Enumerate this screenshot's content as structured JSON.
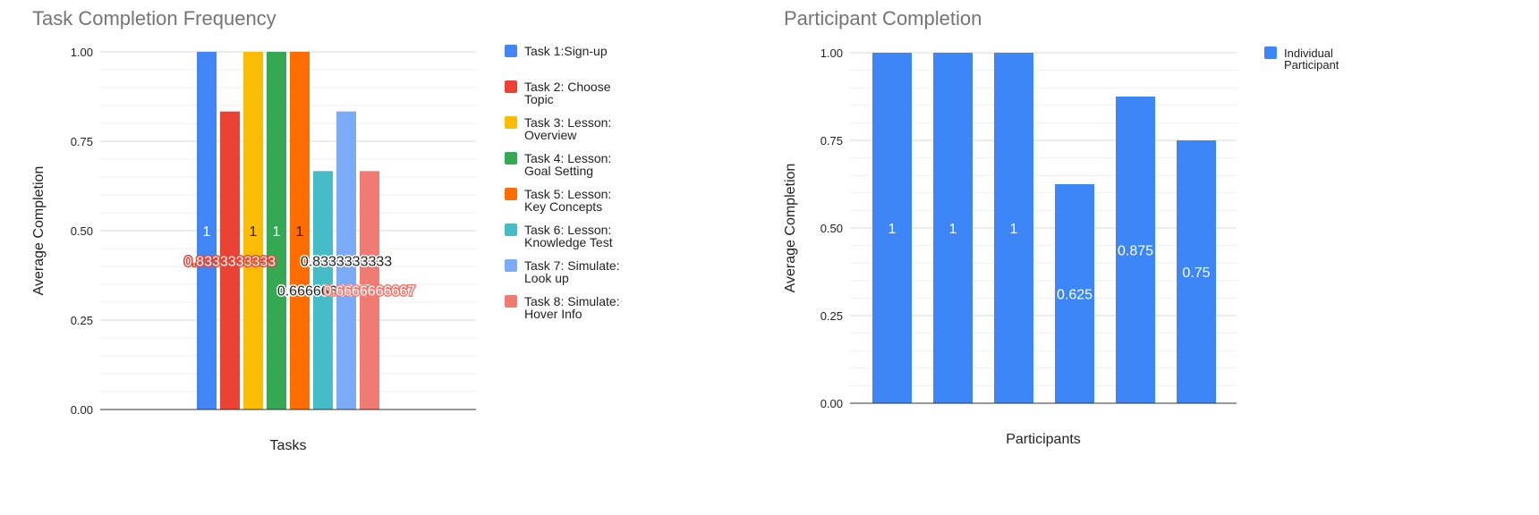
{
  "chart_data": [
    {
      "type": "bar",
      "title": "Task Completion Frequency",
      "xlabel": "Tasks",
      "ylabel": "Average Completion",
      "ylim": [
        0,
        1
      ],
      "yticks": [
        "0.00",
        "0.25",
        "0.50",
        "0.75",
        "1.00"
      ],
      "grid": true,
      "legend_position": "right",
      "series": [
        {
          "name": "Task 1:Sign-up",
          "values": [
            1
          ],
          "color": "#4285f4",
          "data_label": "1",
          "label_color": "#ffffff"
        },
        {
          "name": "Task 2: Choose Topic",
          "values": [
            0.8333333333
          ],
          "color": "#ea4335",
          "data_label": "0.8333333333",
          "label_color": "#ffffff"
        },
        {
          "name": "Task 3: Lesson: Overview",
          "values": [
            1
          ],
          "color": "#fbbc04",
          "data_label": "1",
          "label_color": "#222222"
        },
        {
          "name": "Task 4: Lesson: Goal Setting",
          "values": [
            1
          ],
          "color": "#34a853",
          "data_label": "1",
          "label_color": "#ffffff"
        },
        {
          "name": "Task 5: Lesson: Key Concepts",
          "values": [
            1
          ],
          "color": "#ff6d01",
          "data_label": "1",
          "label_color": "#222222"
        },
        {
          "name": "Task 6: Lesson: Knowledge Test",
          "values": [
            0.6666666667
          ],
          "color": "#46bdc6",
          "data_label": "0.6666666667",
          "label_color": "#222222"
        },
        {
          "name": "Task 7: Simulate: Look up",
          "values": [
            0.8333333333
          ],
          "color": "#7baaf7",
          "data_label": "0.8333333333",
          "label_color": "#222222"
        },
        {
          "name": "Task 8: Simulate: Hover Info",
          "values": [
            0.6666666667
          ],
          "color": "#f07b72",
          "data_label": "0.6666666667",
          "label_color": "#ffffff"
        }
      ]
    },
    {
      "type": "bar",
      "title": "Participant Completion",
      "xlabel": "Participants",
      "ylabel": "Average Completion",
      "ylim": [
        0,
        1
      ],
      "yticks": [
        "0.00",
        "0.25",
        "0.50",
        "0.75",
        "1.00"
      ],
      "grid": true,
      "legend_position": "top-right",
      "series": [
        {
          "name": "Individual Participant",
          "color": "#3c86f8",
          "values": [
            1,
            1,
            1,
            0.625,
            0.875,
            0.75
          ],
          "data_labels": [
            "1",
            "1",
            "1",
            "0.625",
            "0.875",
            "0.75"
          ]
        }
      ]
    }
  ]
}
